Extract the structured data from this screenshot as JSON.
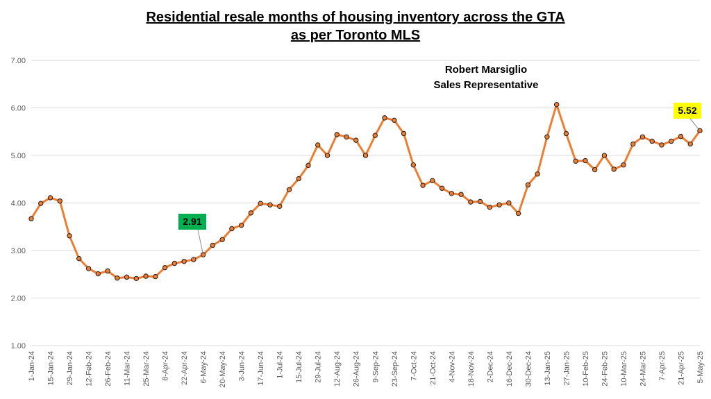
{
  "header": {
    "title_line1": "Residential resale months of housing inventory across the GTA",
    "title_line2": "as per Toronto MLS",
    "author_name": "Robert Marsiglio",
    "author_role": "Sales Representative"
  },
  "colors": {
    "line": "#ED7D31",
    "marker_fill": "#ED7D31",
    "marker_stroke": "#1F1F1F",
    "grid": "#D9D9D9",
    "callout_low_bg": "#00B050",
    "callout_high_bg": "#FFFF00"
  },
  "chart_data": {
    "type": "line",
    "title": "Residential resale months of housing inventory across the GTA as per Toronto MLS",
    "xlabel": "",
    "ylabel": "",
    "ylim": [
      1.0,
      7.0
    ],
    "yticks": [
      "1.00",
      "2.00",
      "3.00",
      "4.00",
      "5.00",
      "6.00",
      "7.00"
    ],
    "grid": true,
    "legend": "none",
    "x": [
      "1-Jan-24",
      "8-Jan-24",
      "15-Jan-24",
      "22-Jan-24",
      "29-Jan-24",
      "5-Feb-24",
      "12-Feb-24",
      "19-Feb-24",
      "26-Feb-24",
      "4-Mar-24",
      "11-Mar-24",
      "18-Mar-24",
      "25-Mar-24",
      "1-Apr-24",
      "8-Apr-24",
      "15-Apr-24",
      "22-Apr-24",
      "29-Apr-24",
      "6-May-24",
      "13-May-24",
      "20-May-24",
      "27-May-24",
      "3-Jun-24",
      "10-Jun-24",
      "17-Jun-24",
      "24-Jun-24",
      "1-Jul-24",
      "8-Jul-24",
      "15-Jul-24",
      "22-Jul-24",
      "29-Jul-24",
      "5-Aug-24",
      "12-Aug-24",
      "19-Aug-24",
      "26-Aug-24",
      "2-Sep-24",
      "9-Sep-24",
      "16-Sep-24",
      "23-Sep-24",
      "30-Sep-24",
      "7-Oct-24",
      "14-Oct-24",
      "21-Oct-24",
      "28-Oct-24",
      "4-Nov-24",
      "11-Nov-24",
      "18-Nov-24",
      "25-Nov-24",
      "2-Dec-24",
      "9-Dec-24",
      "16-Dec-24",
      "23-Dec-24",
      "30-Dec-24",
      "6-Jan-25",
      "13-Jan-25",
      "20-Jan-25",
      "27-Jan-25",
      "3-Feb-25",
      "10-Feb-25",
      "17-Feb-25",
      "24-Feb-25",
      "3-Mar-25",
      "10-Mar-25",
      "17-Mar-25",
      "24-Mar-25",
      "31-Mar-25",
      "7-Apr-25",
      "14-Apr-25",
      "21-Apr-25",
      "28-Apr-25",
      "5-May-25"
    ],
    "x_tick_labels": [
      "1-Jan-24",
      "15-Jan-24",
      "29-Jan-24",
      "12-Feb-24",
      "26-Feb-24",
      "11-Mar-24",
      "25-Mar-24",
      "8-Apr-24",
      "22-Apr-24",
      "6-May-24",
      "20-May-24",
      "3-Jun-24",
      "17-Jun-24",
      "1-Jul-24",
      "15-Jul-24",
      "29-Jul-24",
      "12-Aug-24",
      "26-Aug-24",
      "9-Sep-24",
      "23-Sep-24",
      "7-Oct-24",
      "21-Oct-24",
      "4-Nov-24",
      "18-Nov-24",
      "2-Dec-24",
      "16-Dec-24",
      "30-Dec-24",
      "13-Jan-25",
      "27-Jan-25",
      "10-Feb-25",
      "24-Feb-25",
      "10-Mar-25",
      "24-Mar-25",
      "7-Apr-25",
      "21-Apr-25",
      "5-May-25"
    ],
    "series": [
      {
        "values": [
          3.67,
          3.99,
          4.11,
          4.04,
          3.31,
          2.83,
          2.62,
          2.51,
          2.57,
          2.42,
          2.44,
          2.41,
          2.46,
          2.45,
          2.64,
          2.73,
          2.77,
          2.81,
          2.91,
          3.11,
          3.23,
          3.46,
          3.53,
          3.79,
          3.99,
          3.96,
          3.93,
          4.28,
          4.51,
          4.79,
          5.22,
          5.0,
          5.44,
          5.39,
          5.32,
          5.0,
          5.42,
          5.79,
          5.74,
          5.46,
          4.8,
          4.37,
          4.47,
          4.31,
          4.2,
          4.18,
          4.02,
          4.03,
          3.91,
          3.96,
          4.0,
          3.78,
          4.38,
          4.61,
          5.39,
          6.07,
          5.46,
          4.88,
          4.89,
          4.7,
          5.0,
          4.71,
          4.8,
          5.24,
          5.39,
          5.3,
          5.22,
          5.3,
          5.4,
          5.24,
          5.52
        ]
      }
    ],
    "annotations": [
      {
        "label": "2.91",
        "x": "6-May-24",
        "y": 2.91
      },
      {
        "label": "5.52",
        "x": "5-May-25",
        "y": 5.52
      }
    ]
  }
}
